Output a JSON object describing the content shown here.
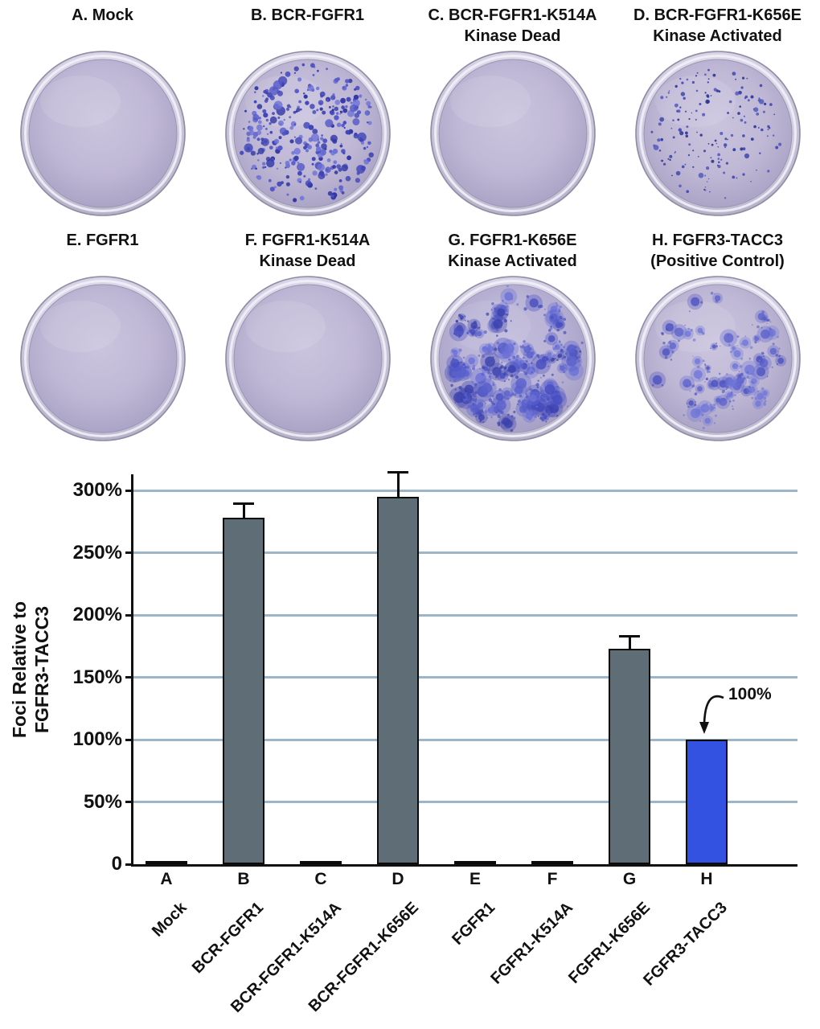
{
  "figure": {
    "panels": [
      {
        "letter": "A",
        "title": "A. Mock",
        "subtitle": "",
        "foci": "none"
      },
      {
        "letter": "B",
        "title": "B. BCR-FGFR1",
        "subtitle": "",
        "foci": "dense-small"
      },
      {
        "letter": "C",
        "title": "C. BCR-FGFR1-K514A",
        "subtitle": "Kinase Dead",
        "foci": "none"
      },
      {
        "letter": "D",
        "title": "D. BCR-FGFR1-K656E",
        "subtitle": "Kinase Activated",
        "foci": "sparse-small"
      },
      {
        "letter": "E",
        "title": "E. FGFR1",
        "subtitle": "",
        "foci": "none"
      },
      {
        "letter": "F",
        "title": "F. FGFR1-K514A",
        "subtitle": "Kinase Dead",
        "foci": "none"
      },
      {
        "letter": "G",
        "title": "G. FGFR1-K656E",
        "subtitle": "Kinase Activated",
        "foci": "dense-large"
      },
      {
        "letter": "H",
        "title": "H. FGFR3-TACC3",
        "subtitle": "(Positive Control)",
        "foci": "medium-large"
      }
    ]
  },
  "chart_data": {
    "type": "bar",
    "title": "",
    "xlabel": "",
    "ylabel": "Foci Relative to FGFR3-TACC3",
    "ylabel_lines": [
      "Foci Relative to",
      "FGFR3-TACC3"
    ],
    "ytick_labels": [
      "0",
      "50%",
      "100%",
      "150%",
      "200%",
      "250%",
      "300%"
    ],
    "ylim": [
      0,
      312
    ],
    "grid": "horizontal",
    "gridline_color": "#9db5c8",
    "categories": [
      "A",
      "B",
      "C",
      "D",
      "E",
      "F",
      "G",
      "H"
    ],
    "category_sublabels": [
      "Mock",
      "BCR-FGFR1",
      "BCR-FGFR1-K514A",
      "BCR-FGFR1-K656E",
      "FGFR1",
      "FGFR1-K514A",
      "FGFR1-K656E",
      "FGFR3-TACC3"
    ],
    "values": [
      1,
      278,
      1,
      295,
      1,
      1,
      173,
      100
    ],
    "errors": [
      0,
      12,
      0,
      20,
      0,
      0,
      10,
      0
    ],
    "bar_colors": [
      "#5f6d76",
      "#5f6d76",
      "#5f6d76",
      "#5f6d76",
      "#5f6d76",
      "#5f6d76",
      "#5f6d76",
      "#3352e1"
    ],
    "annotation": {
      "text": "100%",
      "target": "H"
    }
  },
  "colors": {
    "dish_base": "#c0b9d6",
    "dish_rim": "#dbd7e8",
    "colony_blue": "#4a50c0",
    "bar_gray": "#5f6d76",
    "bar_blue": "#3352e1",
    "gridline": "#9db5c8",
    "axis": "#111111"
  }
}
